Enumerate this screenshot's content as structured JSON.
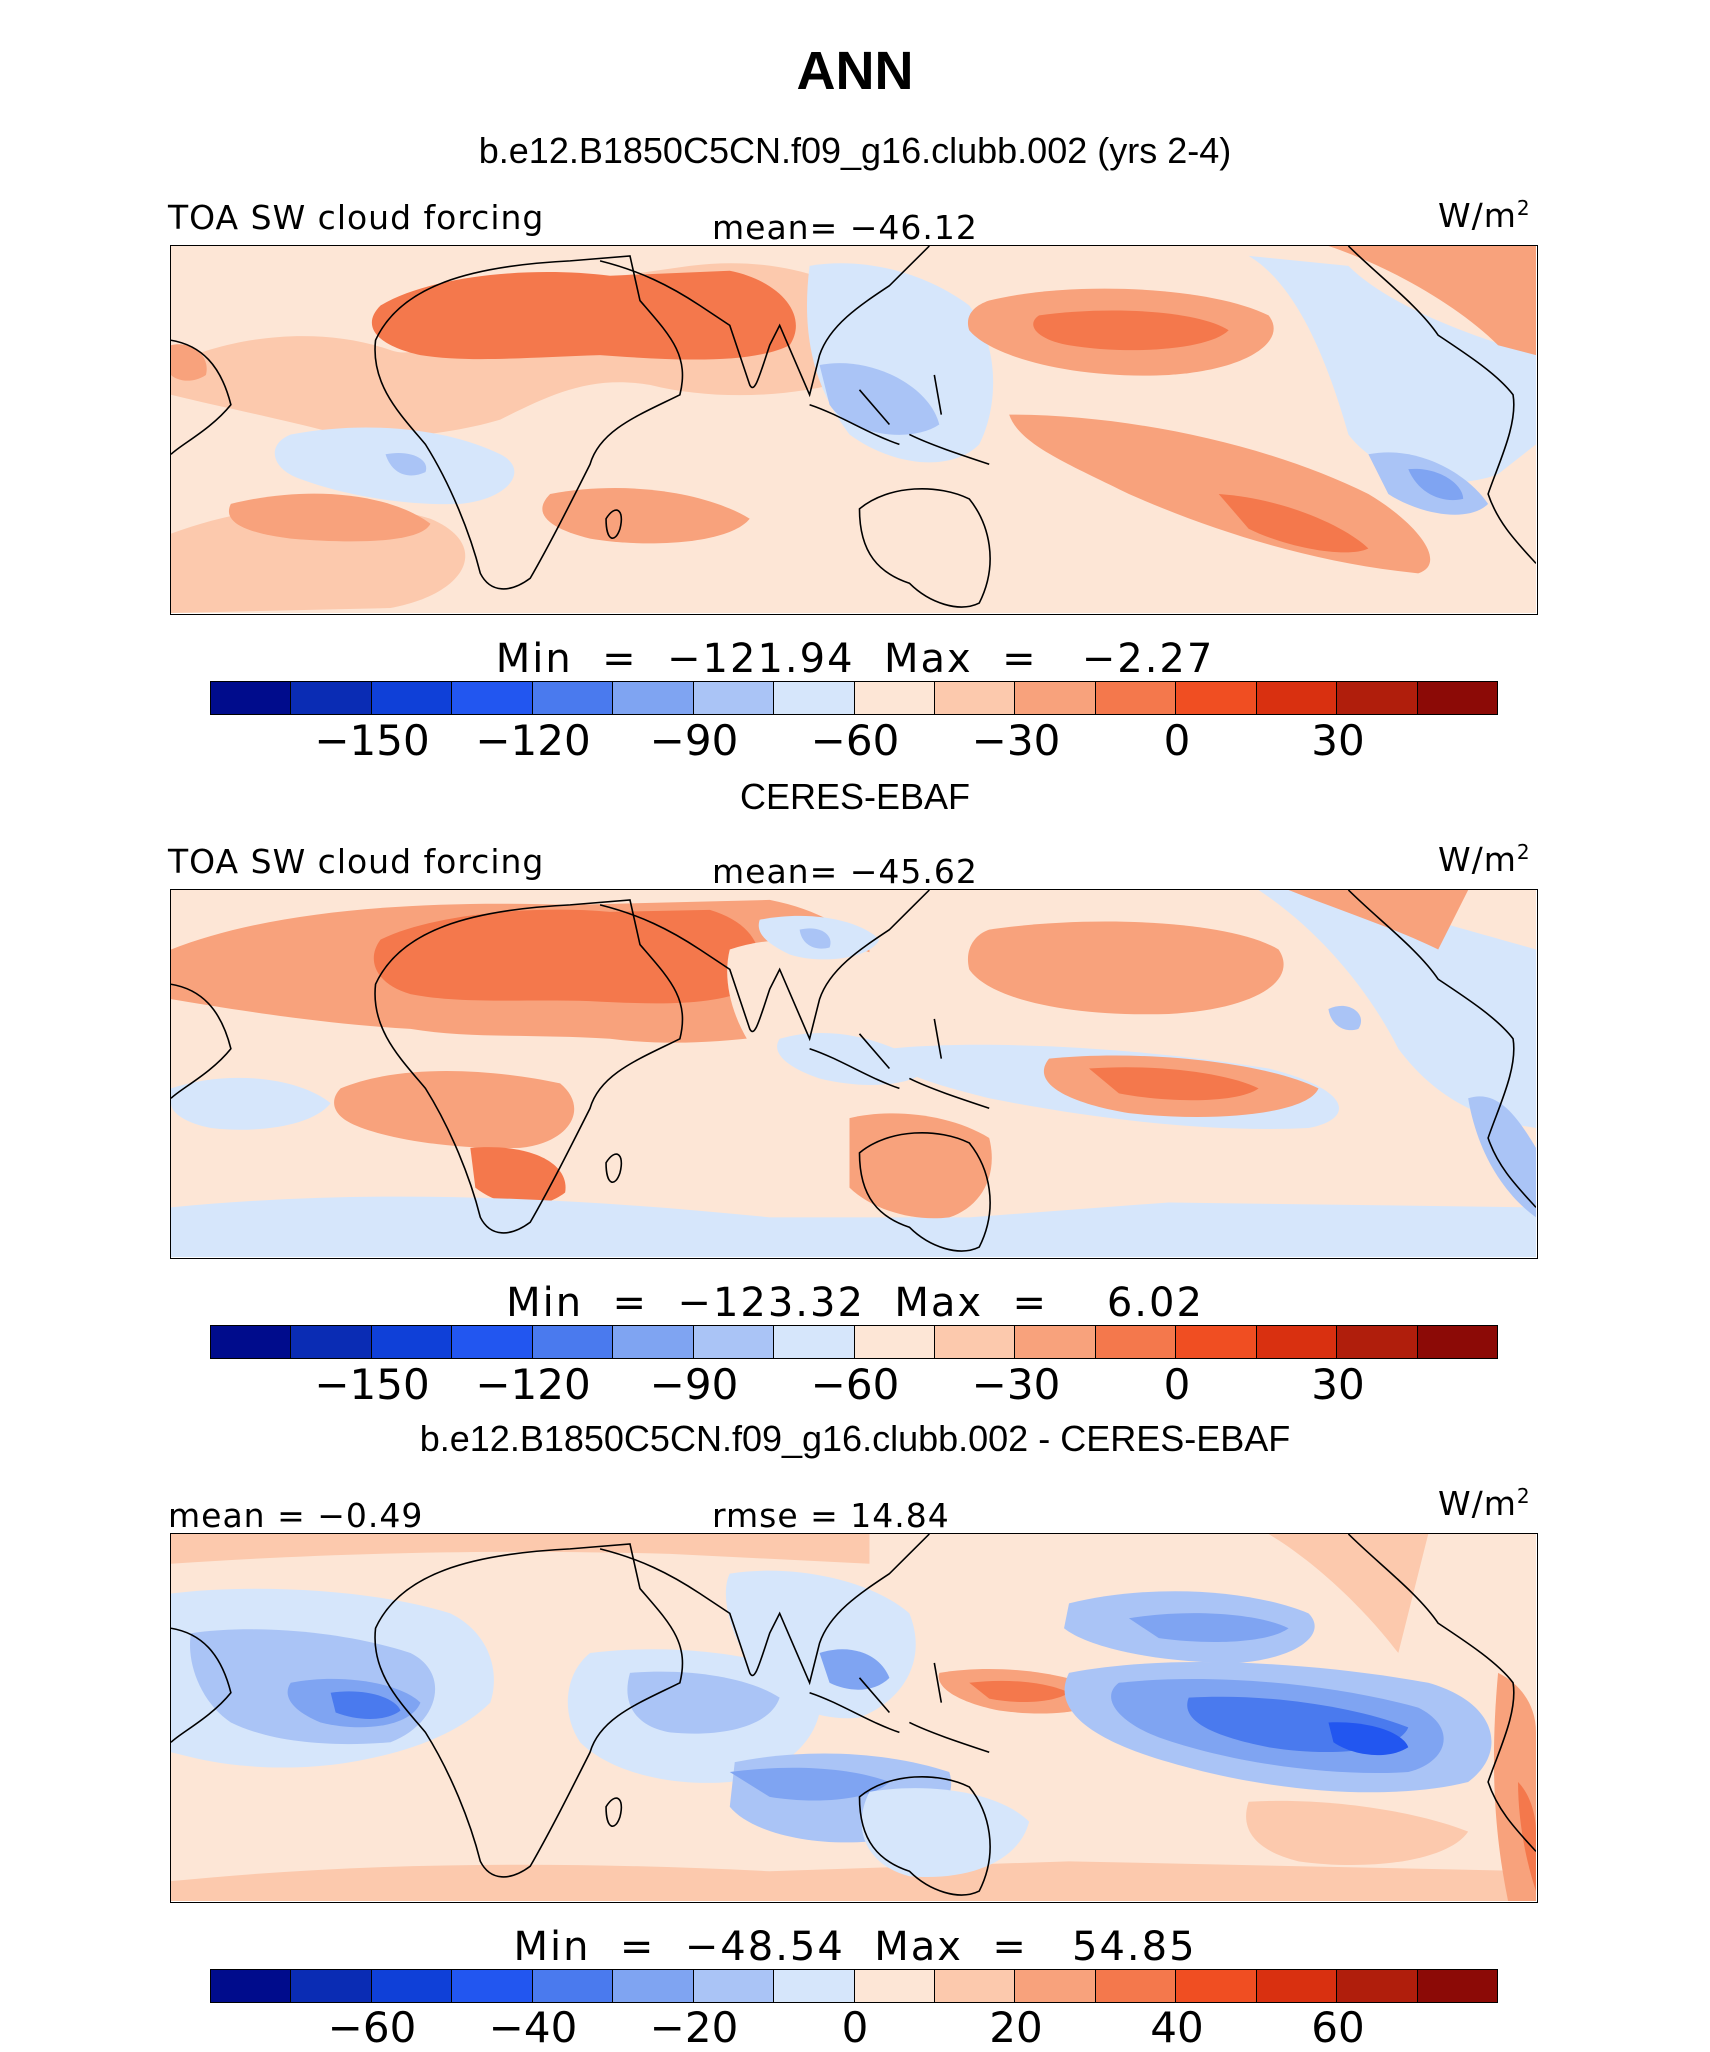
{
  "title": "ANN",
  "colorbar_colors": [
    "#000c8c",
    "#0a2cb4",
    "#0f40d8",
    "#2256f0",
    "#4a7aee",
    "#7fa4f2",
    "#aac4f6",
    "#d6e6fb",
    "#fde6d6",
    "#fcc9ad",
    "#f8a27c",
    "#f4784c",
    "#f04e22",
    "#d93010",
    "#b01e0c",
    "#8c0a06"
  ],
  "panels": [
    {
      "subtitle": "b.e12.B1850C5CN.f09_g16.clubb.002 (yrs 2-4)",
      "left_label": "TOA SW cloud forcing",
      "center_label": "mean= −46.12",
      "units": "W/m",
      "units_sup": "2",
      "minmax": "Min  =  −121.94  Max  =   −2.27",
      "ticks": [
        "−150",
        "−120",
        "−90",
        "−60",
        "−30",
        "0",
        "30"
      ]
    },
    {
      "subtitle": "CERES-EBAF",
      "left_label": "TOA SW cloud forcing",
      "center_label": "mean= −45.62",
      "units": "W/m",
      "units_sup": "2",
      "minmax": "Min  =  −123.32  Max  =    6.02",
      "ticks": [
        "−150",
        "−120",
        "−90",
        "−60",
        "−30",
        "0",
        "30"
      ]
    },
    {
      "subtitle": "b.e12.B1850C5CN.f09_g16.clubb.002 - CERES-EBAF",
      "left_label": "mean  =   −0.49",
      "center_label": "rmse  =   14.84",
      "units": "W/m",
      "units_sup": "2",
      "minmax": "Min  =  −48.54  Max  =   54.85",
      "ticks": [
        "−60",
        "−40",
        "−20",
        "0",
        "20",
        "40",
        "60"
      ]
    }
  ],
  "chart_data": [
    {
      "type": "heatmap",
      "title": "b.e12.B1850C5CN.f09_g16.clubb.002 (yrs 2-4)",
      "variable": "TOA SW cloud forcing",
      "units": "W/m2",
      "mean": -46.12,
      "min": -121.94,
      "max": -2.27,
      "colorbar_ticks": [
        -150,
        -120,
        -90,
        -60,
        -30,
        0,
        30
      ]
    },
    {
      "type": "heatmap",
      "title": "CERES-EBAF",
      "variable": "TOA SW cloud forcing",
      "units": "W/m2",
      "mean": -45.62,
      "min": -123.32,
      "max": 6.02,
      "colorbar_ticks": [
        -150,
        -120,
        -90,
        -60,
        -30,
        0,
        30
      ]
    },
    {
      "type": "heatmap",
      "title": "b.e12.B1850C5CN.f09_g16.clubb.002 - CERES-EBAF",
      "units": "W/m2",
      "mean": -0.49,
      "rmse": 14.84,
      "min": -48.54,
      "max": 54.85,
      "colorbar_ticks": [
        -60,
        -40,
        -20,
        0,
        20,
        40,
        60
      ]
    }
  ]
}
